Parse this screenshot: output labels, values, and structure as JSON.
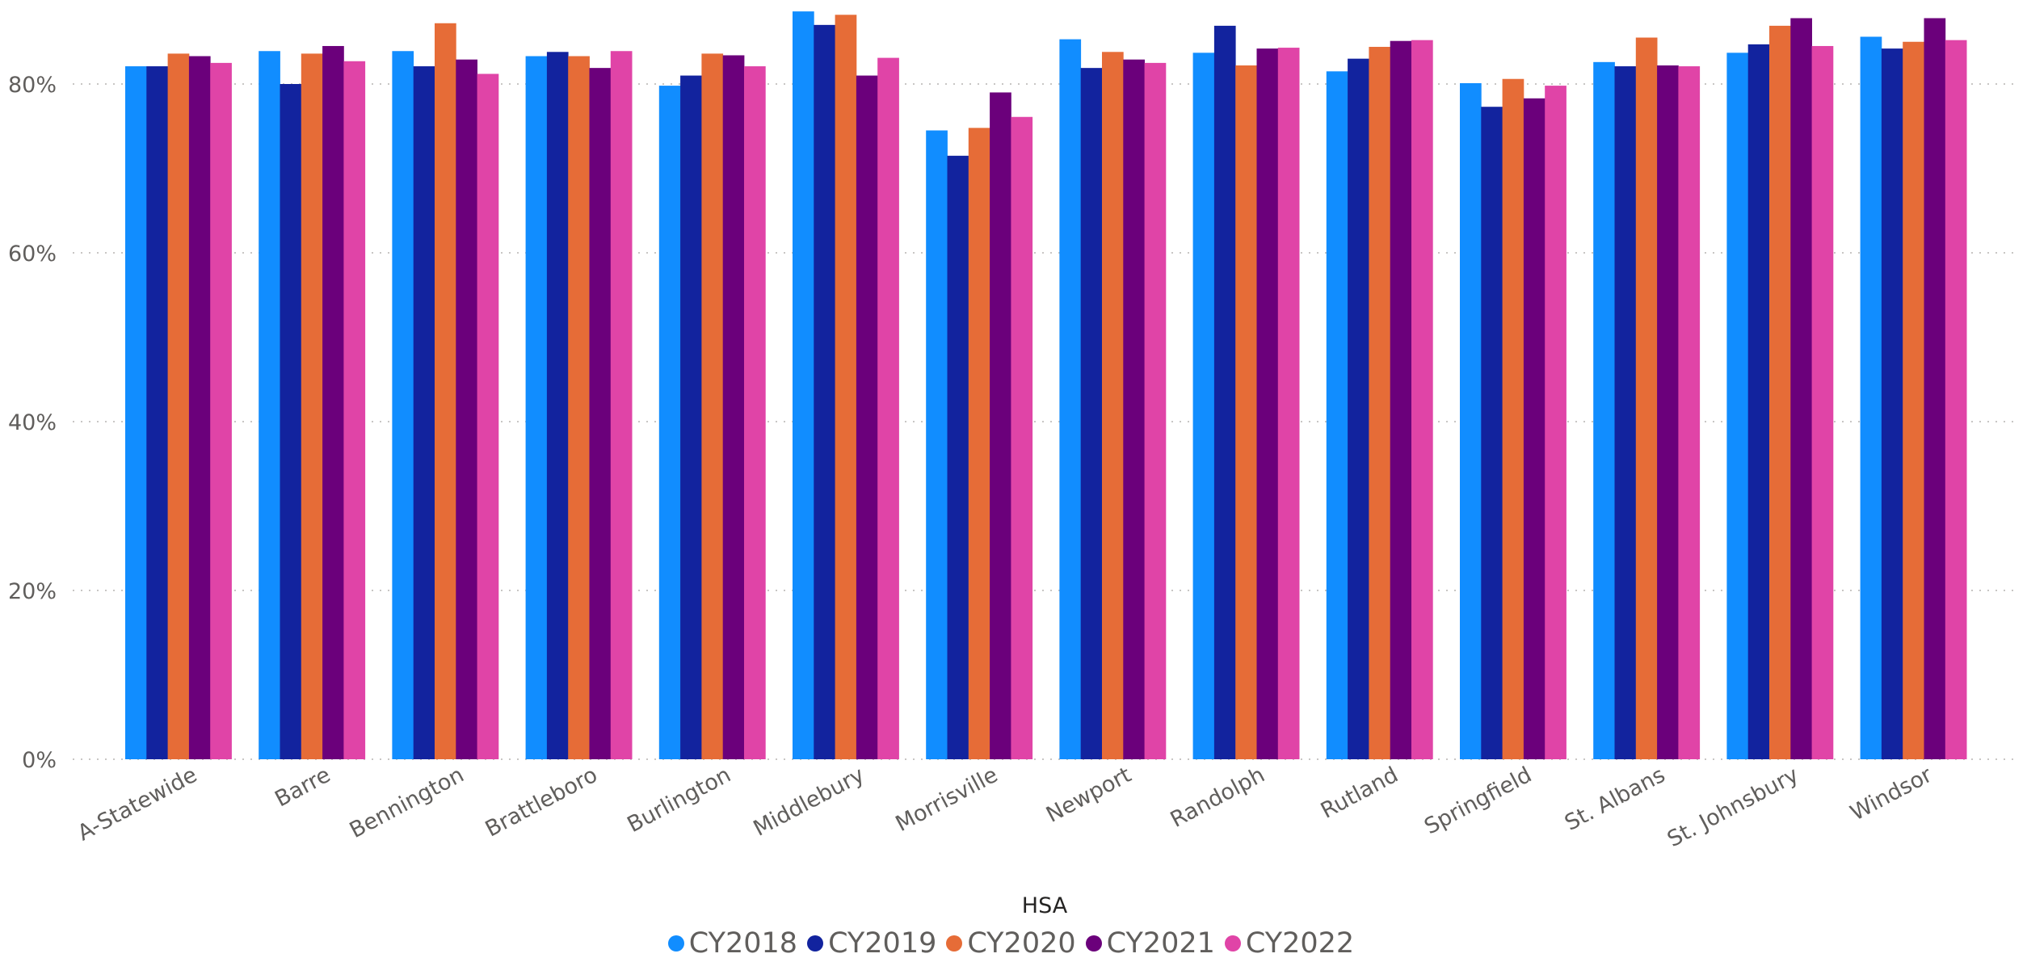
{
  "chart_data": {
    "type": "bar",
    "xlabel": "HSA",
    "ylabel": "",
    "ylim": [
      0,
      0.9
    ],
    "y_ticks": [
      "0%",
      "20%",
      "40%",
      "60%",
      "80%"
    ],
    "y_tick_values": [
      0,
      0.2,
      0.4,
      0.6,
      0.8
    ],
    "grid": true,
    "legend_position": "bottom-center",
    "categories": [
      "A-Statewide",
      "Barre",
      "Bennington",
      "Brattleboro",
      "Burlington",
      "Middlebury",
      "Morrisville",
      "Newport",
      "Randolph",
      "Rutland",
      "Springfield",
      "St. Albans",
      "St. Johnsbury",
      "Windsor"
    ],
    "series": [
      {
        "name": "CY2018",
        "color": "#118dff",
        "values": [
          0.821,
          0.839,
          0.839,
          0.833,
          0.798,
          0.886,
          0.745,
          0.853,
          0.837,
          0.815,
          0.801,
          0.826,
          0.837,
          0.856
        ]
      },
      {
        "name": "CY2019",
        "color": "#12239e",
        "values": [
          0.821,
          0.8,
          0.821,
          0.838,
          0.81,
          0.87,
          0.715,
          0.819,
          0.869,
          0.83,
          0.773,
          0.821,
          0.847,
          0.842
        ]
      },
      {
        "name": "CY2020",
        "color": "#e66c37",
        "values": [
          0.836,
          0.836,
          0.872,
          0.833,
          0.836,
          0.882,
          0.748,
          0.838,
          0.822,
          0.844,
          0.806,
          0.855,
          0.869,
          0.85
        ]
      },
      {
        "name": "CY2021",
        "color": "#6b007b",
        "values": [
          0.833,
          0.845,
          0.829,
          0.819,
          0.834,
          0.81,
          0.79,
          0.829,
          0.842,
          0.851,
          0.783,
          0.822,
          0.878,
          0.878
        ]
      },
      {
        "name": "CY2022",
        "color": "#e044a7",
        "values": [
          0.825,
          0.827,
          0.812,
          0.839,
          0.821,
          0.831,
          0.761,
          0.825,
          0.843,
          0.852,
          0.798,
          0.821,
          0.845,
          0.852
        ]
      }
    ]
  }
}
